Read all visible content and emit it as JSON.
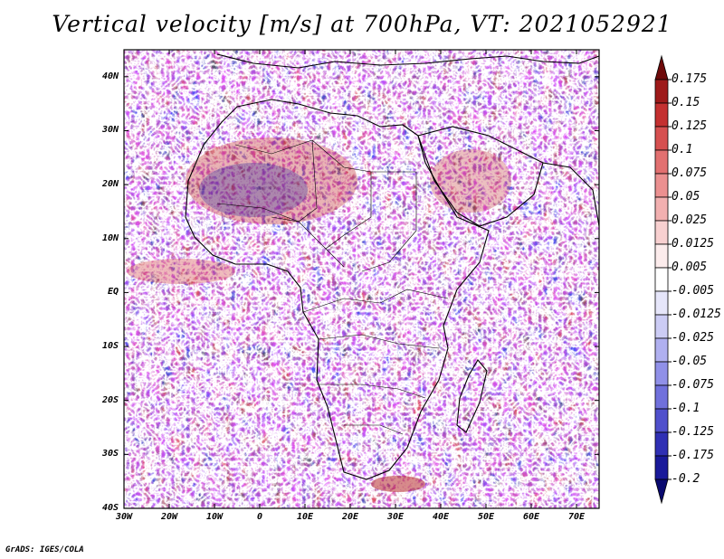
{
  "title": "Vertical velocity [m/s] at 700hPa, VT: 2021052921",
  "footer": "GrADS: IGES/COLA",
  "lat_labels": [
    "40N",
    "30N",
    "20N",
    "10N",
    "EQ",
    "10S",
    "20S",
    "30S",
    "40S"
  ],
  "lat_values": [
    40,
    30,
    20,
    10,
    0,
    -10,
    -20,
    -30,
    -40
  ],
  "lon_labels": [
    "30W",
    "20W",
    "10W",
    "0",
    "10E",
    "20E",
    "30E",
    "40E",
    "50E",
    "60E",
    "70E"
  ],
  "lon_values": [
    -30,
    -20,
    -10,
    0,
    10,
    20,
    30,
    40,
    50,
    60,
    70
  ],
  "map_extent": {
    "lon_min": -30,
    "lon_max": 75,
    "lat_min": -40,
    "lat_max": 45
  },
  "colorbar": {
    "labels": [
      "0.175",
      "0.15",
      "0.125",
      "0.1",
      "0.075",
      "0.05",
      "0.025",
      "0.0125",
      "0.005",
      "-0.005",
      "-0.0125",
      "-0.025",
      "-0.05",
      "-0.075",
      "-0.1",
      "-0.125",
      "-0.175",
      "-0.2"
    ],
    "colors": [
      "#6e0a0a",
      "#9e1a1a",
      "#c43030",
      "#d65050",
      "#e27070",
      "#eb9090",
      "#f2b0b0",
      "#f8d0d0",
      "#fcecec",
      "#ffffff",
      "#e6e6fa",
      "#ccccf5",
      "#b0b0f0",
      "#9090e8",
      "#7070dc",
      "#5050cc",
      "#3030b4",
      "#1a1a9a",
      "#0a0a70"
    ]
  }
}
